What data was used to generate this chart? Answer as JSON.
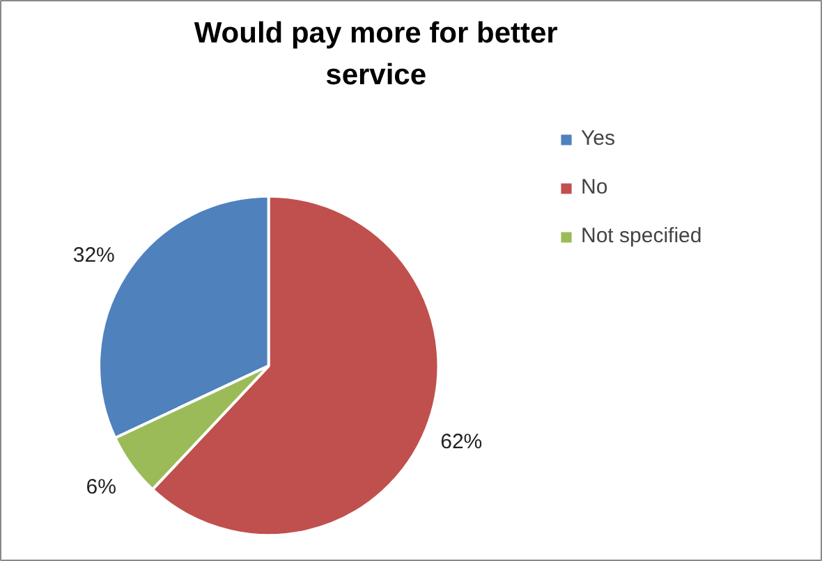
{
  "chart_data": {
    "type": "pie",
    "title": "Would pay more for better service",
    "categories": [
      "Yes",
      "No",
      "Not specified"
    ],
    "values": [
      32,
      62,
      6
    ],
    "colors": [
      "#4f81bd",
      "#c0504d",
      "#9bbb59"
    ],
    "value_labels": [
      "32%",
      "62%",
      "6%"
    ],
    "legend": "right"
  }
}
